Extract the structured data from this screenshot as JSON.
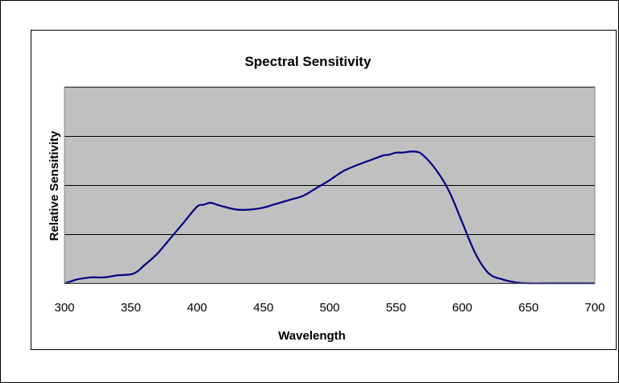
{
  "chart_data": {
    "type": "line",
    "title": "Spectral Sensitivity",
    "xlabel": "Wavelength",
    "ylabel": "Relative Sensitivity",
    "xlim": [
      300,
      700
    ],
    "ylim": [
      0,
      1
    ],
    "x_ticks": [
      300,
      350,
      400,
      450,
      500,
      550,
      600,
      650,
      700
    ],
    "y_gridlines": [
      0.25,
      0.5,
      0.75,
      1.0
    ],
    "grid": true,
    "legend": "none",
    "colors": {
      "plot_background": "#c0c0c0",
      "line": "#000080",
      "gridline": "#000000"
    },
    "series": [
      {
        "values_x": [
          300,
          305,
          310,
          320,
          330,
          340,
          350,
          355,
          360,
          370,
          380,
          390,
          400,
          405,
          410,
          415,
          420,
          430,
          440,
          450,
          460,
          470,
          480,
          490,
          500,
          510,
          520,
          530,
          540,
          545,
          550,
          555,
          560,
          565,
          570,
          580,
          590,
          600,
          610,
          620,
          630,
          640,
          650,
          660,
          670,
          680,
          690,
          700
        ],
        "values_y": [
          0.0,
          0.01,
          0.02,
          0.03,
          0.03,
          0.04,
          0.045,
          0.06,
          0.09,
          0.15,
          0.23,
          0.31,
          0.39,
          0.4,
          0.41,
          0.4,
          0.39,
          0.375,
          0.375,
          0.385,
          0.405,
          0.425,
          0.445,
          0.485,
          0.525,
          0.57,
          0.6,
          0.625,
          0.65,
          0.655,
          0.665,
          0.665,
          0.67,
          0.67,
          0.655,
          0.58,
          0.47,
          0.31,
          0.15,
          0.05,
          0.02,
          0.005,
          0.0,
          0.0,
          0.0,
          0.0,
          0.0,
          0.0
        ]
      }
    ]
  }
}
